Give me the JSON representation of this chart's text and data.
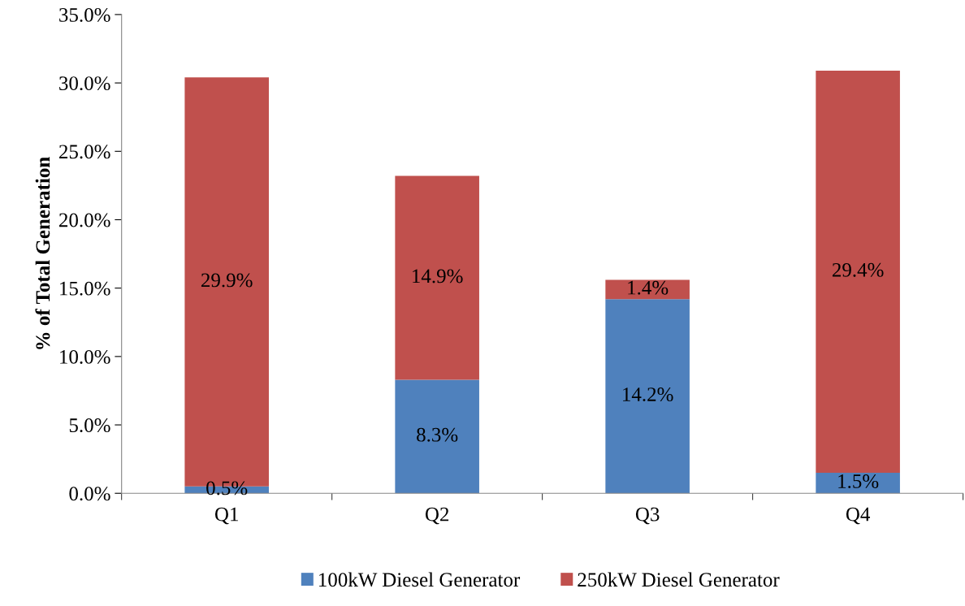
{
  "chart_data": {
    "type": "bar",
    "stacked": true,
    "ylabel": "% of Total Generation",
    "categories": [
      "Q1",
      "Q2",
      "Q3",
      "Q4"
    ],
    "series": [
      {
        "name": "100kW Diesel Generator",
        "color": "#4f81bd",
        "values": [
          0.5,
          8.3,
          14.2,
          1.5
        ],
        "value_labels": [
          "0.5%",
          "8.3%",
          "14.2%",
          "1.5%"
        ]
      },
      {
        "name": "250kW Diesel Generator",
        "color": "#c0504d",
        "values": [
          29.9,
          14.9,
          1.4,
          29.4
        ],
        "value_labels": [
          "29.9%",
          "14.9%",
          "1.4%",
          "29.4%"
        ]
      }
    ],
    "ylim": [
      0,
      35
    ],
    "yticks": [
      {
        "value": 0,
        "label": "0.0%"
      },
      {
        "value": 5,
        "label": "5.0%"
      },
      {
        "value": 10,
        "label": "10.0%"
      },
      {
        "value": 15,
        "label": "15.0%"
      },
      {
        "value": 20,
        "label": "20.0%"
      },
      {
        "value": 25,
        "label": "25.0%"
      },
      {
        "value": 30,
        "label": "30.0%"
      },
      {
        "value": 35,
        "label": "35.0%"
      }
    ],
    "grid": false,
    "legend": "bottom"
  }
}
